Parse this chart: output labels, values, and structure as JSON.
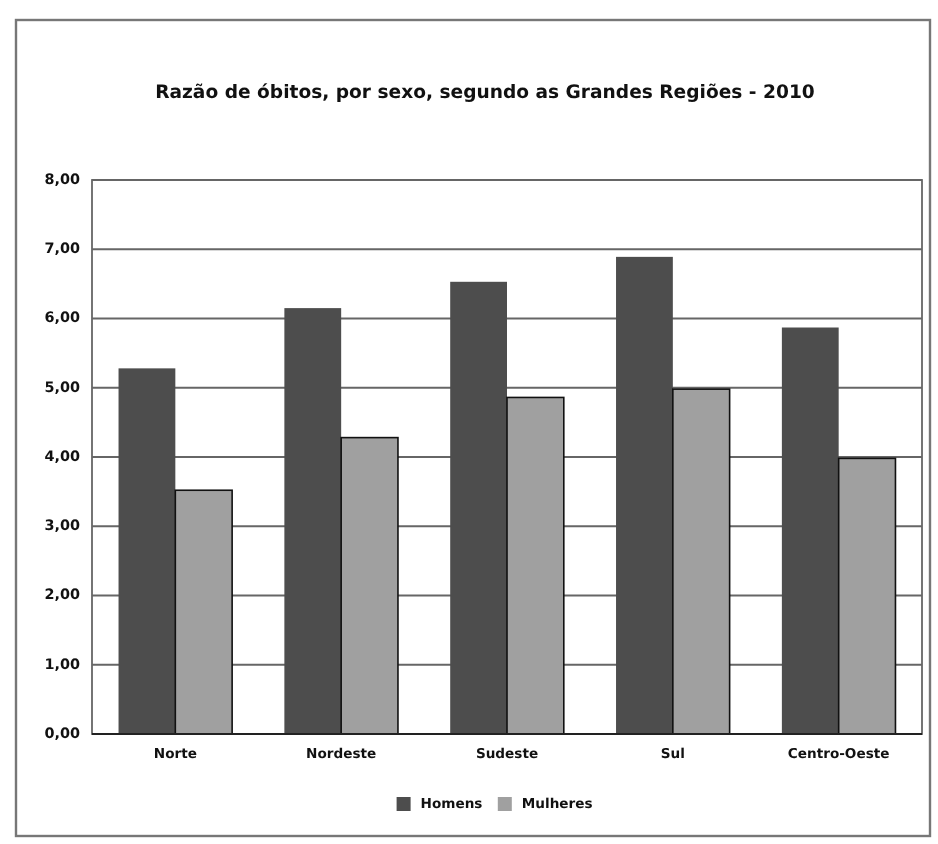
{
  "chart_data": {
    "type": "bar",
    "title": "Razão de óbitos, por sexo, segundo as Grandes Regiões - 2010",
    "categories": [
      "Norte",
      "Nordeste",
      "Sudeste",
      "Sul",
      "Centro-Oeste"
    ],
    "series": [
      {
        "name": "Homens",
        "color": "#4d4d4d",
        "values": [
          5.28,
          6.15,
          6.53,
          6.89,
          5.87
        ]
      },
      {
        "name": "Mulheres",
        "color": "#a0a0a0",
        "values": [
          3.52,
          4.28,
          4.86,
          4.98,
          3.98
        ]
      }
    ],
    "ylim": [
      0,
      8
    ],
    "yticks": [
      {
        "value": 0,
        "label": "0,00"
      },
      {
        "value": 1,
        "label": "1,00"
      },
      {
        "value": 2,
        "label": "2,00"
      },
      {
        "value": 3,
        "label": "3,00"
      },
      {
        "value": 4,
        "label": "4,00"
      },
      {
        "value": 5,
        "label": "5,00"
      },
      {
        "value": 6,
        "label": "6,00"
      },
      {
        "value": 7,
        "label": "7,00"
      },
      {
        "value": 8,
        "label": "8,00"
      }
    ],
    "grid": "y",
    "legend": "bottom"
  }
}
